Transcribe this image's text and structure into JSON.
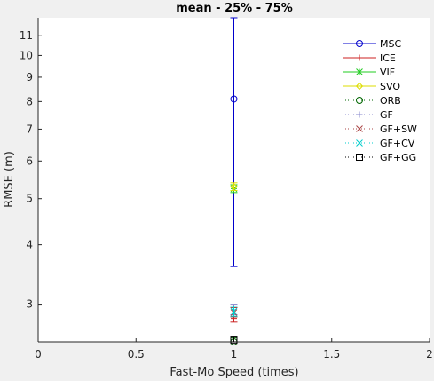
{
  "chart_data": {
    "type": "scatter",
    "title": "mean - 25% - 75%",
    "xlabel": "Fast-Mo Speed (times)",
    "ylabel": "RMSE (m)",
    "xlim": [
      0,
      2
    ],
    "ylim": [
      2.5,
      12
    ],
    "yscale": "log",
    "grid": false,
    "legend_position": "top-right",
    "x_ticks": [
      {
        "value": 0,
        "label": "0"
      },
      {
        "value": 0.5,
        "label": "0.5"
      },
      {
        "value": 1,
        "label": "1"
      },
      {
        "value": 1.5,
        "label": "1.5"
      },
      {
        "value": 2,
        "label": "2"
      }
    ],
    "y_ticks": [
      {
        "value": 3,
        "label": "3"
      },
      {
        "value": 4,
        "label": "4"
      },
      {
        "value": 5,
        "label": "5"
      },
      {
        "value": 6,
        "label": "6"
      },
      {
        "value": 7,
        "label": "7"
      },
      {
        "value": 8,
        "label": "8"
      },
      {
        "value": 9,
        "label": "9"
      },
      {
        "value": 10,
        "label": "10"
      },
      {
        "value": 11,
        "label": "11"
      }
    ],
    "series": [
      {
        "name": "MSC",
        "x": 1,
        "y": 8.1,
        "low": 3.6,
        "high": 12.0,
        "color": "#0000cc",
        "marker": "circle",
        "line": "solid"
      },
      {
        "name": "ICE",
        "x": 1,
        "y": 2.8,
        "low": 2.75,
        "high": 2.85,
        "color": "#cc2222",
        "marker": "plus",
        "line": "solid"
      },
      {
        "name": "VIF",
        "x": 1,
        "y": 5.25,
        "low": 5.15,
        "high": 5.35,
        "color": "#22cc22",
        "marker": "star",
        "line": "solid"
      },
      {
        "name": "SVO",
        "x": 1,
        "y": 5.3,
        "low": 5.2,
        "high": 5.4,
        "color": "#dddd00",
        "marker": "diamond",
        "line": "solid"
      },
      {
        "name": "ORB",
        "x": 1,
        "y": 2.5,
        "low": 2.48,
        "high": 2.55,
        "color": "#006600",
        "marker": "circle",
        "line": "dotted"
      },
      {
        "name": "GF",
        "x": 1,
        "y": 2.92,
        "low": 2.85,
        "high": 3.0,
        "color": "#8888cc",
        "marker": "plus",
        "line": "dotted"
      },
      {
        "name": "GF+SW",
        "x": 1,
        "y": 2.88,
        "low": 2.82,
        "high": 2.95,
        "color": "#aa4444",
        "marker": "cross",
        "line": "dotted"
      },
      {
        "name": "GF+CV",
        "x": 1,
        "y": 2.9,
        "low": 2.83,
        "high": 2.97,
        "color": "#00cccc",
        "marker": "cross",
        "line": "dotted"
      },
      {
        "name": "GF+GG",
        "x": 1,
        "y": 2.52,
        "low": 2.49,
        "high": 2.57,
        "color": "#000000",
        "marker": "square",
        "line": "dotted"
      }
    ]
  }
}
